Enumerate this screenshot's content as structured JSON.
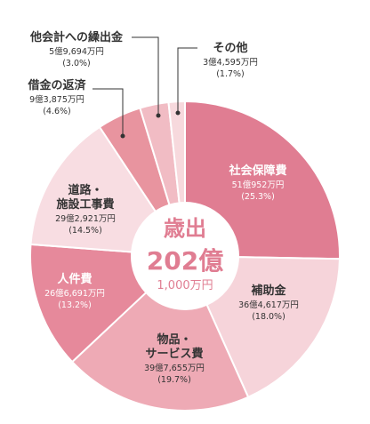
{
  "chart_data": {
    "type": "pie",
    "center": {
      "title": "歳出",
      "total": "202億",
      "sub": "1,000万円"
    },
    "slices": [
      {
        "name": "社会保障費",
        "amount": "51億952万円",
        "pct_label": "(25.3%)",
        "value": 25.3,
        "color": "#e07d92",
        "text_color": "#ffffff"
      },
      {
        "name": "補助金",
        "amount": "36億4,617万円",
        "pct_label": "(18.0%)",
        "value": 18.0,
        "color": "#f6d4da",
        "text_color": "#333333"
      },
      {
        "name": "物品・\nサービス費",
        "amount": "39億7,655万円",
        "pct_label": "(19.7%)",
        "value": 19.7,
        "color": "#eeaab5",
        "text_color": "#333333"
      },
      {
        "name": "人件費",
        "amount": "26億6,691万円",
        "pct_label": "(13.2%)",
        "value": 13.2,
        "color": "#e6899b",
        "text_color": "#ffffff"
      },
      {
        "name": "道路・\n施設工事費",
        "amount": "29億2,921万円",
        "pct_label": "(14.5%)",
        "value": 14.5,
        "color": "#f8dde2",
        "text_color": "#333333"
      },
      {
        "name": "借金の返済",
        "amount": "9億3,875万円",
        "pct_label": "(4.6%)",
        "value": 4.6,
        "color": "#e8949f",
        "text_color": "#333333"
      },
      {
        "name": "他会計への繰出金",
        "amount": "5億9,694万円",
        "pct_label": "(3.0%)",
        "value": 3.0,
        "color": "#f1bcc4",
        "text_color": "#333333"
      },
      {
        "name": "その他",
        "amount": "3億4,595万円",
        "pct_label": "(1.7%)",
        "value": 1.7,
        "color": "#f7d9dd",
        "text_color": "#333333"
      }
    ],
    "colors": {
      "center_title": "#e07d92",
      "center_sub": "#e07d92",
      "leader": "#333333"
    }
  }
}
